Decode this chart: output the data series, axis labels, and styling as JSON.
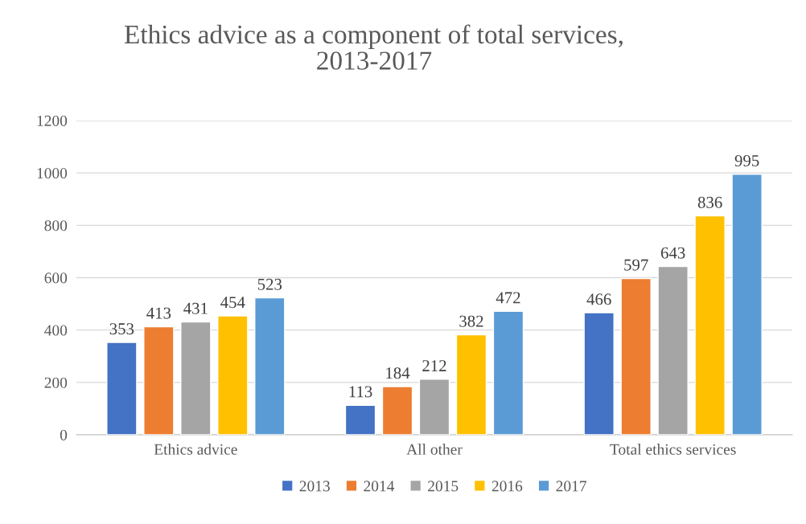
{
  "chart_data": {
    "type": "bar",
    "title": "Ethics advice as a component of total services,\n2013-2017",
    "categories": [
      "Ethics advice",
      "All other",
      "Total ethics services"
    ],
    "series": [
      {
        "name": "2013",
        "color": "#4472c4",
        "values": [
          353,
          113,
          466
        ]
      },
      {
        "name": "2014",
        "color": "#ed7d31",
        "values": [
          413,
          184,
          597
        ]
      },
      {
        "name": "2015",
        "color": "#a5a5a5",
        "values": [
          431,
          212,
          643
        ]
      },
      {
        "name": "2016",
        "color": "#ffc000",
        "values": [
          454,
          382,
          836
        ]
      },
      {
        "name": "2017",
        "color": "#5b9bd5",
        "values": [
          523,
          472,
          995
        ]
      }
    ],
    "ylim": [
      0,
      1200
    ],
    "yticks": [
      0,
      200,
      400,
      600,
      800,
      1000,
      1200
    ],
    "grid": "y",
    "legend": "bottom",
    "data_labels": true
  }
}
